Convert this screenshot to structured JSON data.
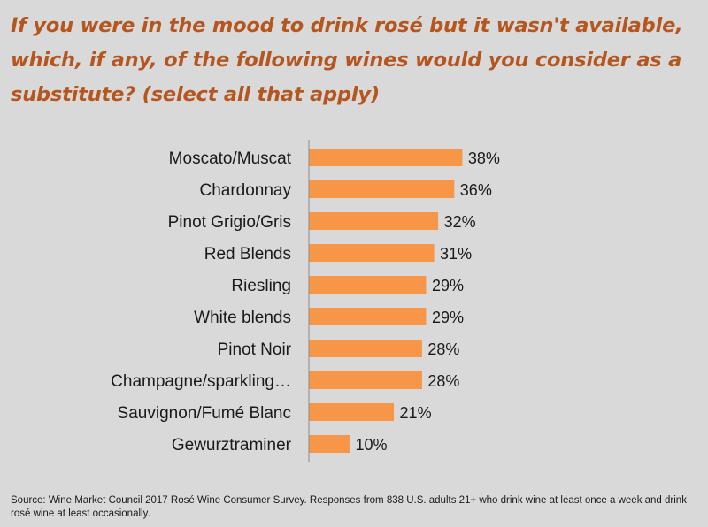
{
  "title": "If you were in the mood to drink rosé but it wasn't available, which, if any, of the following wines would you consider as a substitute? (select all that apply)",
  "source": "Source:  Wine Market Council 2017 Rosé Wine Consumer Survey. Responses from 838 U.S. adults 21+ who drink wine at least once a week and drink rosé wine at least occasionally.",
  "colors": {
    "bar": "#f79646",
    "title": "#b5561f",
    "background": "#d9d9d9"
  },
  "chart_data": {
    "type": "bar",
    "orientation": "horizontal",
    "categories": [
      "Moscato/Muscat",
      "Chardonnay",
      "Pinot Grigio/Gris",
      "Red Blends",
      "Riesling",
      "White blends",
      "Pinot Noir",
      "Champagne/sparkling…",
      "Sauvignon/Fumé Blanc",
      "Gewurztraminer"
    ],
    "values": [
      38,
      36,
      32,
      31,
      29,
      29,
      28,
      28,
      21,
      10
    ],
    "value_labels": [
      "38%",
      "36%",
      "32%",
      "31%",
      "29%",
      "29%",
      "28%",
      "28%",
      "21%",
      "10%"
    ],
    "unit": "%",
    "grid": false,
    "legend": false
  }
}
